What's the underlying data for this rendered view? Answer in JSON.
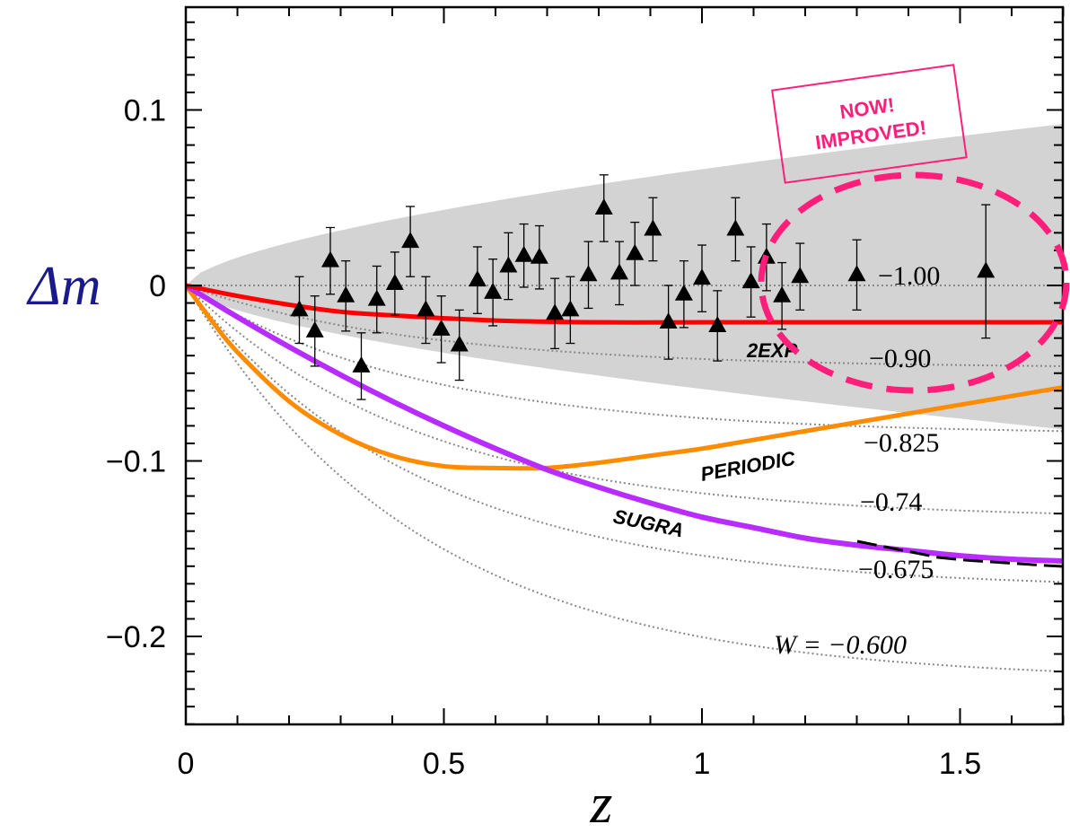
{
  "chart_data": {
    "type": "scatter",
    "xlabel": "z",
    "ylabel": "Δm",
    "xlim": [
      0,
      1.7
    ],
    "ylim": [
      -0.25,
      0.155
    ],
    "grid": false,
    "x_ticks": [
      {
        "v": 0,
        "label": "0"
      },
      {
        "v": 0.5,
        "label": "0.5"
      },
      {
        "v": 1,
        "label": "1"
      },
      {
        "v": 1.5,
        "label": "1.5"
      }
    ],
    "y_ticks": [
      {
        "v": 0.1,
        "label": "0.1"
      },
      {
        "v": 0,
        "label": "0"
      },
      {
        "v": -0.1,
        "label": "−0.1"
      },
      {
        "v": -0.2,
        "label": "−0.2"
      }
    ],
    "uncertainty_band": {
      "color": "#d3d3d3",
      "upper_at_1.7": 0.092,
      "lower_at_1.7": -0.082
    },
    "points": [
      {
        "z": 0.22,
        "dm": -0.014,
        "err": 0.019
      },
      {
        "z": 0.25,
        "dm": -0.026,
        "err": 0.02
      },
      {
        "z": 0.28,
        "dm": 0.014,
        "err": 0.019
      },
      {
        "z": 0.31,
        "dm": -0.006,
        "err": 0.02
      },
      {
        "z": 0.34,
        "dm": -0.046,
        "err": 0.019
      },
      {
        "z": 0.37,
        "dm": -0.008,
        "err": 0.019
      },
      {
        "z": 0.405,
        "dm": 0.001,
        "err": 0.018
      },
      {
        "z": 0.435,
        "dm": 0.025,
        "err": 0.02
      },
      {
        "z": 0.465,
        "dm": -0.014,
        "err": 0.019
      },
      {
        "z": 0.495,
        "dm": -0.025,
        "err": 0.019
      },
      {
        "z": 0.53,
        "dm": -0.034,
        "err": 0.02
      },
      {
        "z": 0.565,
        "dm": 0.003,
        "err": 0.019
      },
      {
        "z": 0.595,
        "dm": -0.004,
        "err": 0.019
      },
      {
        "z": 0.625,
        "dm": 0.011,
        "err": 0.019
      },
      {
        "z": 0.655,
        "dm": 0.017,
        "err": 0.018
      },
      {
        "z": 0.685,
        "dm": 0.016,
        "err": 0.018
      },
      {
        "z": 0.715,
        "dm": -0.016,
        "err": 0.02
      },
      {
        "z": 0.745,
        "dm": -0.014,
        "err": 0.019
      },
      {
        "z": 0.78,
        "dm": 0.006,
        "err": 0.019
      },
      {
        "z": 0.81,
        "dm": 0.044,
        "err": 0.019
      },
      {
        "z": 0.84,
        "dm": 0.007,
        "err": 0.018
      },
      {
        "z": 0.87,
        "dm": 0.018,
        "err": 0.018
      },
      {
        "z": 0.905,
        "dm": 0.032,
        "err": 0.018
      },
      {
        "z": 0.935,
        "dm": -0.021,
        "err": 0.021
      },
      {
        "z": 0.965,
        "dm": -0.005,
        "err": 0.019
      },
      {
        "z": 1.0,
        "dm": 0.004,
        "err": 0.019
      },
      {
        "z": 1.03,
        "dm": -0.023,
        "err": 0.02
      },
      {
        "z": 1.065,
        "dm": 0.032,
        "err": 0.018
      },
      {
        "z": 1.095,
        "dm": 0.002,
        "err": 0.02
      },
      {
        "z": 1.125,
        "dm": 0.016,
        "err": 0.019
      },
      {
        "z": 1.155,
        "dm": -0.006,
        "err": 0.019
      },
      {
        "z": 1.19,
        "dm": 0.005,
        "err": 0.019
      },
      {
        "z": 1.3,
        "dm": 0.006,
        "err": 0.02
      },
      {
        "z": 1.55,
        "dm": 0.008,
        "err": 0.038
      }
    ],
    "w_curves": [
      {
        "label": "−1.00",
        "dm_at_1.7": 0.0
      },
      {
        "label": "−0.90",
        "dm_at_1.7": -0.046
      },
      {
        "label": "−0.825",
        "dm_at_1.7": -0.083
      },
      {
        "label": "−0.74",
        "dm_at_1.7": -0.13
      },
      {
        "label": "−0.675",
        "dm_at_1.7": -0.169
      },
      {
        "label": "W = −0.600",
        "dm_at_1.7": -0.22
      }
    ],
    "models": [
      {
        "name": "2EXP",
        "color": "#ff0000",
        "x": [
          0,
          0.1,
          0.2,
          0.3,
          0.4,
          0.6,
          0.8,
          1.0,
          1.2,
          1.4,
          1.7
        ],
        "y": [
          0,
          -0.006,
          -0.011,
          -0.015,
          -0.017,
          -0.02,
          -0.021,
          -0.021,
          -0.021,
          -0.021,
          -0.021
        ]
      },
      {
        "name": "PERIODIC",
        "color": "#ff8c00",
        "x": [
          0,
          0.05,
          0.1,
          0.2,
          0.3,
          0.4,
          0.5,
          0.6,
          0.7,
          0.8,
          0.9,
          1.0,
          1.1,
          1.2,
          1.3,
          1.4,
          1.5,
          1.6,
          1.7
        ],
        "y": [
          0,
          -0.02,
          -0.038,
          -0.066,
          -0.085,
          -0.097,
          -0.103,
          -0.104,
          -0.104,
          -0.101,
          -0.097,
          -0.093,
          -0.088,
          -0.083,
          -0.078,
          -0.073,
          -0.068,
          -0.063,
          -0.058
        ]
      },
      {
        "name": "SUGRA",
        "color": "#b82cff",
        "x": [
          0,
          0.1,
          0.2,
          0.3,
          0.4,
          0.5,
          0.6,
          0.7,
          0.8,
          0.9,
          1.0,
          1.1,
          1.2,
          1.3,
          1.4,
          1.5,
          1.6,
          1.7
        ],
        "y": [
          0,
          -0.018,
          -0.035,
          -0.051,
          -0.066,
          -0.08,
          -0.093,
          -0.105,
          -0.115,
          -0.124,
          -0.132,
          -0.138,
          -0.144,
          -0.148,
          -0.151,
          -0.154,
          -0.156,
          -0.157
        ]
      }
    ],
    "annotations": {
      "stamp_line1": "NOW!",
      "stamp_line2": "IMPROVED!",
      "highlight_color": "#ff1f7a"
    }
  }
}
